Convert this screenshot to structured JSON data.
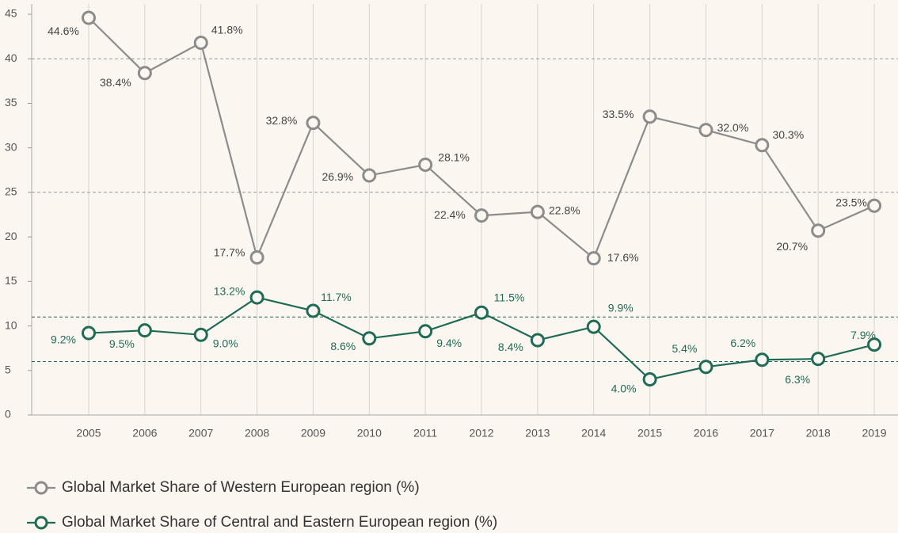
{
  "chart_data": {
    "type": "line",
    "categories": [
      "2005",
      "2006",
      "2007",
      "2008",
      "2009",
      "2010",
      "2011",
      "2012",
      "2013",
      "2014",
      "2015",
      "2016",
      "2017",
      "2018",
      "2019"
    ],
    "series": [
      {
        "name": "Global Market Share of Western European region (%)",
        "color": "#8c8c8c",
        "values": [
          44.6,
          38.4,
          41.8,
          17.7,
          32.8,
          26.9,
          28.1,
          22.4,
          22.8,
          17.6,
          33.5,
          32.0,
          30.3,
          20.7,
          23.5
        ],
        "value_labels": [
          "44.6%",
          "38.4%",
          "41.8%",
          "17.7%",
          "32.8%",
          "26.9%",
          "28.1%",
          "22.4%",
          "22.8%",
          "17.6%",
          "33.5%",
          "32.0%",
          "30.3%",
          "20.7%",
          "23.5%"
        ]
      },
      {
        "name": "Global Market Share of Central and Eastern European region (%)",
        "color": "#1f6b57",
        "values": [
          9.2,
          9.5,
          9.0,
          13.2,
          11.7,
          8.6,
          9.4,
          11.5,
          8.4,
          9.9,
          4.0,
          5.4,
          6.2,
          6.3,
          7.9
        ],
        "value_labels": [
          "9.2%",
          "9.5%",
          "9.0%",
          "13.2%",
          "11.7%",
          "8.6%",
          "9.4%",
          "11.5%",
          "8.4%",
          "9.9%",
          "4.0%",
          "5.4%",
          "6.2%",
          "6.3%",
          "7.9%"
        ]
      }
    ],
    "ylim": [
      0,
      45
    ],
    "yticks": [
      0,
      5,
      10,
      15,
      20,
      25,
      30,
      35,
      40,
      45
    ],
    "grid": true,
    "reference_lines": [
      {
        "value": 40,
        "color": "#999999"
      },
      {
        "value": 25,
        "color": "#999999"
      },
      {
        "value": 11,
        "color": "#1f6b57"
      },
      {
        "value": 6,
        "color": "#1f6b57"
      }
    ],
    "legend": "bottom"
  }
}
